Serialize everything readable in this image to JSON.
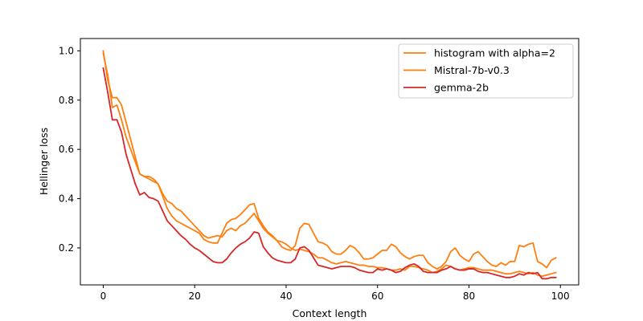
{
  "chart_data": {
    "type": "line",
    "title": "",
    "xlabel": "Context length",
    "ylabel": "Hellinger loss",
    "xlim": [
      -5,
      104
    ],
    "ylim": [
      0.05,
      1.05
    ],
    "xticks": [
      0,
      20,
      40,
      60,
      80,
      100
    ],
    "yticks": [
      0.2,
      0.4,
      0.6,
      0.8,
      1.0
    ],
    "xtick_labels": [
      "0",
      "20",
      "40",
      "60",
      "80",
      "100"
    ],
    "ytick_labels": [
      "0.2",
      "0.4",
      "0.6",
      "0.8",
      "1.0"
    ],
    "grid": false,
    "legend_position": "top-right",
    "series": [
      {
        "name": "histogram with alpha=2",
        "color": "#ff7f0e",
        "points": [
          [
            0,
            1.0
          ],
          [
            1,
            0.88
          ],
          [
            2,
            0.81
          ],
          [
            3,
            0.81
          ],
          [
            4,
            0.78
          ],
          [
            5,
            0.71
          ],
          [
            6,
            0.64
          ],
          [
            7,
            0.57
          ],
          [
            8,
            0.5
          ],
          [
            9,
            0.49
          ],
          [
            10,
            0.49
          ],
          [
            11,
            0.48
          ],
          [
            12,
            0.46
          ],
          [
            13,
            0.42
          ],
          [
            14,
            0.39
          ],
          [
            15,
            0.38
          ],
          [
            16,
            0.36
          ],
          [
            17,
            0.35
          ],
          [
            18,
            0.33
          ],
          [
            19,
            0.31
          ],
          [
            20,
            0.29
          ],
          [
            21,
            0.27
          ],
          [
            22,
            0.25
          ],
          [
            23,
            0.24
          ],
          [
            24,
            0.245
          ],
          [
            25,
            0.25
          ],
          [
            26,
            0.245
          ],
          [
            27,
            0.27
          ],
          [
            28,
            0.28
          ],
          [
            29,
            0.27
          ],
          [
            30,
            0.29
          ],
          [
            31,
            0.3
          ],
          [
            32,
            0.32
          ],
          [
            33,
            0.34
          ],
          [
            34,
            0.31
          ],
          [
            35,
            0.28
          ],
          [
            36,
            0.26
          ],
          [
            37,
            0.245
          ],
          [
            38,
            0.23
          ],
          [
            39,
            0.225
          ],
          [
            40,
            0.215
          ],
          [
            41,
            0.2
          ],
          [
            42,
            0.19
          ],
          [
            43,
            0.195
          ],
          [
            44,
            0.19
          ],
          [
            45,
            0.185
          ],
          [
            46,
            0.175
          ],
          [
            47,
            0.16
          ],
          [
            48,
            0.16
          ],
          [
            49,
            0.15
          ],
          [
            50,
            0.14
          ],
          [
            51,
            0.135
          ],
          [
            52,
            0.14
          ],
          [
            53,
            0.145
          ],
          [
            54,
            0.14
          ],
          [
            55,
            0.135
          ],
          [
            56,
            0.13
          ],
          [
            57,
            0.13
          ],
          [
            58,
            0.125
          ],
          [
            59,
            0.125
          ],
          [
            60,
            0.12
          ],
          [
            61,
            0.12
          ],
          [
            62,
            0.115
          ],
          [
            63,
            0.11
          ],
          [
            64,
            0.11
          ],
          [
            65,
            0.115
          ],
          [
            66,
            0.11
          ],
          [
            67,
            0.125
          ],
          [
            68,
            0.125
          ],
          [
            69,
            0.12
          ],
          [
            70,
            0.115
          ],
          [
            71,
            0.11
          ],
          [
            72,
            0.1
          ],
          [
            73,
            0.105
          ],
          [
            74,
            0.115
          ],
          [
            75,
            0.13
          ],
          [
            76,
            0.125
          ],
          [
            77,
            0.115
          ],
          [
            78,
            0.11
          ],
          [
            79,
            0.115
          ],
          [
            80,
            0.12
          ],
          [
            81,
            0.12
          ],
          [
            82,
            0.115
          ],
          [
            83,
            0.11
          ],
          [
            84,
            0.11
          ],
          [
            85,
            0.11
          ],
          [
            86,
            0.105
          ],
          [
            87,
            0.1
          ],
          [
            88,
            0.095
          ],
          [
            89,
            0.095
          ],
          [
            90,
            0.1
          ],
          [
            91,
            0.105
          ],
          [
            92,
            0.1
          ],
          [
            93,
            0.095
          ],
          [
            94,
            0.1
          ],
          [
            95,
            0.09
          ],
          [
            96,
            0.085
          ],
          [
            97,
            0.09
          ],
          [
            98,
            0.095
          ],
          [
            99,
            0.1
          ]
        ]
      },
      {
        "name": "Mistral-7b-v0.3",
        "color": "#ff7f0e",
        "points": [
          [
            0,
            0.99
          ],
          [
            1,
            0.9
          ],
          [
            2,
            0.77
          ],
          [
            3,
            0.78
          ],
          [
            4,
            0.72
          ],
          [
            5,
            0.65
          ],
          [
            6,
            0.6
          ],
          [
            7,
            0.55
          ],
          [
            8,
            0.5
          ],
          [
            9,
            0.49
          ],
          [
            10,
            0.48
          ],
          [
            11,
            0.47
          ],
          [
            12,
            0.46
          ],
          [
            13,
            0.41
          ],
          [
            14,
            0.36
          ],
          [
            15,
            0.33
          ],
          [
            16,
            0.31
          ],
          [
            17,
            0.3
          ],
          [
            18,
            0.29
          ],
          [
            19,
            0.28
          ],
          [
            20,
            0.27
          ],
          [
            21,
            0.26
          ],
          [
            22,
            0.235
          ],
          [
            23,
            0.225
          ],
          [
            24,
            0.22
          ],
          [
            25,
            0.22
          ],
          [
            26,
            0.26
          ],
          [
            27,
            0.3
          ],
          [
            28,
            0.315
          ],
          [
            29,
            0.32
          ],
          [
            30,
            0.335
          ],
          [
            31,
            0.355
          ],
          [
            32,
            0.375
          ],
          [
            33,
            0.38
          ],
          [
            34,
            0.32
          ],
          [
            35,
            0.29
          ],
          [
            36,
            0.265
          ],
          [
            37,
            0.25
          ],
          [
            38,
            0.23
          ],
          [
            39,
            0.205
          ],
          [
            40,
            0.195
          ],
          [
            41,
            0.19
          ],
          [
            42,
            0.21
          ],
          [
            43,
            0.28
          ],
          [
            44,
            0.3
          ],
          [
            45,
            0.295
          ],
          [
            46,
            0.26
          ],
          [
            47,
            0.225
          ],
          [
            48,
            0.22
          ],
          [
            49,
            0.21
          ],
          [
            50,
            0.185
          ],
          [
            51,
            0.175
          ],
          [
            52,
            0.175
          ],
          [
            53,
            0.19
          ],
          [
            54,
            0.21
          ],
          [
            55,
            0.2
          ],
          [
            56,
            0.18
          ],
          [
            57,
            0.155
          ],
          [
            58,
            0.155
          ],
          [
            59,
            0.16
          ],
          [
            60,
            0.175
          ],
          [
            61,
            0.19
          ],
          [
            62,
            0.19
          ],
          [
            63,
            0.215
          ],
          [
            64,
            0.205
          ],
          [
            65,
            0.18
          ],
          [
            66,
            0.165
          ],
          [
            67,
            0.155
          ],
          [
            68,
            0.165
          ],
          [
            69,
            0.17
          ],
          [
            70,
            0.17
          ],
          [
            71,
            0.14
          ],
          [
            72,
            0.125
          ],
          [
            73,
            0.115
          ],
          [
            74,
            0.125
          ],
          [
            75,
            0.145
          ],
          [
            76,
            0.185
          ],
          [
            77,
            0.2
          ],
          [
            78,
            0.17
          ],
          [
            79,
            0.155
          ],
          [
            80,
            0.145
          ],
          [
            81,
            0.175
          ],
          [
            82,
            0.185
          ],
          [
            83,
            0.165
          ],
          [
            84,
            0.145
          ],
          [
            85,
            0.13
          ],
          [
            86,
            0.125
          ],
          [
            87,
            0.14
          ],
          [
            88,
            0.13
          ],
          [
            89,
            0.145
          ],
          [
            90,
            0.145
          ],
          [
            91,
            0.21
          ],
          [
            92,
            0.205
          ],
          [
            93,
            0.215
          ],
          [
            94,
            0.22
          ],
          [
            95,
            0.145
          ],
          [
            96,
            0.135
          ],
          [
            97,
            0.12
          ],
          [
            98,
            0.15
          ],
          [
            99,
            0.16
          ]
        ]
      },
      {
        "name": "gemma-2b",
        "color": "#d62728",
        "points": [
          [
            0,
            0.93
          ],
          [
            1,
            0.83
          ],
          [
            2,
            0.72
          ],
          [
            3,
            0.72
          ],
          [
            4,
            0.67
          ],
          [
            5,
            0.58
          ],
          [
            6,
            0.52
          ],
          [
            7,
            0.46
          ],
          [
            8,
            0.415
          ],
          [
            9,
            0.425
          ],
          [
            10,
            0.405
          ],
          [
            11,
            0.4
          ],
          [
            12,
            0.39
          ],
          [
            13,
            0.35
          ],
          [
            14,
            0.31
          ],
          [
            15,
            0.29
          ],
          [
            16,
            0.27
          ],
          [
            17,
            0.25
          ],
          [
            18,
            0.235
          ],
          [
            19,
            0.215
          ],
          [
            20,
            0.2
          ],
          [
            21,
            0.19
          ],
          [
            22,
            0.175
          ],
          [
            23,
            0.16
          ],
          [
            24,
            0.145
          ],
          [
            25,
            0.14
          ],
          [
            26,
            0.14
          ],
          [
            27,
            0.155
          ],
          [
            28,
            0.18
          ],
          [
            29,
            0.2
          ],
          [
            30,
            0.215
          ],
          [
            31,
            0.225
          ],
          [
            32,
            0.24
          ],
          [
            33,
            0.265
          ],
          [
            34,
            0.26
          ],
          [
            35,
            0.205
          ],
          [
            36,
            0.18
          ],
          [
            37,
            0.16
          ],
          [
            38,
            0.15
          ],
          [
            39,
            0.145
          ],
          [
            40,
            0.14
          ],
          [
            41,
            0.14
          ],
          [
            42,
            0.155
          ],
          [
            43,
            0.2
          ],
          [
            44,
            0.205
          ],
          [
            45,
            0.19
          ],
          [
            46,
            0.16
          ],
          [
            47,
            0.13
          ],
          [
            48,
            0.125
          ],
          [
            49,
            0.12
          ],
          [
            50,
            0.115
          ],
          [
            51,
            0.12
          ],
          [
            52,
            0.125
          ],
          [
            53,
            0.125
          ],
          [
            54,
            0.125
          ],
          [
            55,
            0.12
          ],
          [
            56,
            0.11
          ],
          [
            57,
            0.105
          ],
          [
            58,
            0.1
          ],
          [
            59,
            0.1
          ],
          [
            60,
            0.115
          ],
          [
            61,
            0.11
          ],
          [
            62,
            0.115
          ],
          [
            63,
            0.11
          ],
          [
            64,
            0.1
          ],
          [
            65,
            0.105
          ],
          [
            66,
            0.12
          ],
          [
            67,
            0.13
          ],
          [
            68,
            0.135
          ],
          [
            69,
            0.125
          ],
          [
            70,
            0.105
          ],
          [
            71,
            0.1
          ],
          [
            72,
            0.1
          ],
          [
            73,
            0.1
          ],
          [
            74,
            0.11
          ],
          [
            75,
            0.115
          ],
          [
            76,
            0.125
          ],
          [
            77,
            0.115
          ],
          [
            78,
            0.11
          ],
          [
            79,
            0.11
          ],
          [
            80,
            0.115
          ],
          [
            81,
            0.115
          ],
          [
            82,
            0.105
          ],
          [
            83,
            0.1
          ],
          [
            84,
            0.1
          ],
          [
            85,
            0.095
          ],
          [
            86,
            0.09
          ],
          [
            87,
            0.085
          ],
          [
            88,
            0.08
          ],
          [
            89,
            0.08
          ],
          [
            90,
            0.085
          ],
          [
            91,
            0.095
          ],
          [
            92,
            0.09
          ],
          [
            93,
            0.1
          ],
          [
            94,
            0.095
          ],
          [
            95,
            0.1
          ],
          [
            96,
            0.075
          ],
          [
            97,
            0.075
          ],
          [
            98,
            0.08
          ],
          [
            99,
            0.08
          ]
        ]
      }
    ]
  }
}
